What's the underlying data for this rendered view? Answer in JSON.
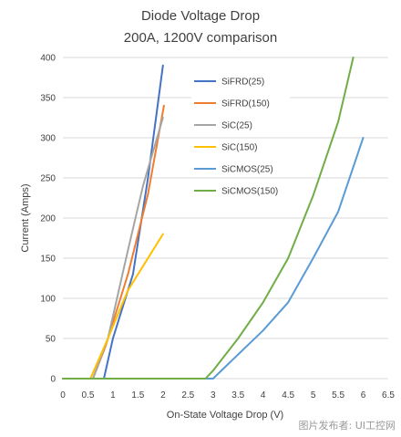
{
  "chart_data": {
    "type": "line",
    "title": [
      "Diode Voltage Drop",
      "200A, 1200V comparison"
    ],
    "xlabel": "On-State Voltage Drop (V)",
    "ylabel": "Current (Amps)",
    "xlim": [
      0,
      6.5
    ],
    "ylim": [
      0,
      400
    ],
    "x_ticks": [
      "0",
      "0.5",
      "1",
      "1.5",
      "2",
      "2.5",
      "3",
      "3.5",
      "4",
      "4.5",
      "5",
      "5.5",
      "6",
      "6.5"
    ],
    "y_ticks": [
      "0",
      "50",
      "100",
      "150",
      "200",
      "250",
      "300",
      "350",
      "400"
    ],
    "grid": "horizontal",
    "legend_position": "top-right inside plot",
    "series": [
      {
        "name": "SiFRD(25)",
        "color": "#4472c4",
        "x": [
          0,
          0.82,
          1.0,
          1.4,
          1.7,
          2.0
        ],
        "y": [
          0,
          0,
          50,
          130,
          250,
          390
        ]
      },
      {
        "name": "SiFRD(150)",
        "color": "#ed7d31",
        "x": [
          0,
          0.6,
          0.85,
          1.3,
          1.7,
          2.02
        ],
        "y": [
          0,
          0,
          40,
          130,
          230,
          340
        ]
      },
      {
        "name": "SiC(25)",
        "color": "#a5a5a5",
        "x": [
          0,
          0.6,
          0.9,
          1.3,
          1.6,
          2.0
        ],
        "y": [
          0,
          0,
          50,
          160,
          240,
          325
        ]
      },
      {
        "name": "SiC(150)",
        "color": "#ffc000",
        "x": [
          0,
          0.55,
          0.9,
          1.3,
          1.6,
          2.0
        ],
        "y": [
          0,
          0,
          50,
          110,
          140,
          180
        ]
      },
      {
        "name": "SiCMOS(25)",
        "color": "#5b9bd5",
        "x": [
          0,
          3.0,
          3.5,
          4.0,
          4.5,
          5.0,
          5.5,
          6.0
        ],
        "y": [
          0,
          0,
          30,
          60,
          95,
          150,
          208,
          300
        ]
      },
      {
        "name": "SiCMOS(150)",
        "color": "#70ad47",
        "x": [
          0,
          2.85,
          3.0,
          3.5,
          4.0,
          4.5,
          5.0,
          5.5,
          5.8
        ],
        "y": [
          0,
          0,
          10,
          50,
          95,
          150,
          228,
          320,
          400
        ]
      }
    ]
  },
  "watermark": "图片发布者: UI工控网"
}
